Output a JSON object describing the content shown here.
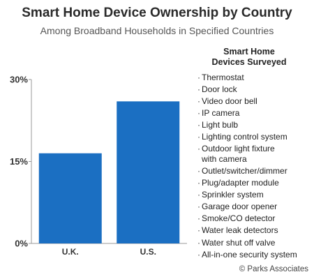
{
  "chart_data": {
    "type": "bar",
    "title": "Smart Home Device Ownership by Country",
    "subtitle": "Among Broadband Households in Specified Countries",
    "categories": [
      "U.K.",
      "U.S."
    ],
    "values": [
      16.5,
      26
    ],
    "unit": "%",
    "ylim": [
      0,
      30
    ],
    "yticks": [
      "0%",
      "15%",
      "30%"
    ],
    "ytick_values": [
      0,
      15,
      30
    ],
    "grid": false,
    "legend": "none",
    "bar_color": "#1b6fc2"
  },
  "devices_panel": {
    "title_line1": "Smart Home",
    "title_line2": "Devices Surveyed",
    "bullet": "·",
    "items": [
      [
        "Thermostat"
      ],
      [
        "Door lock"
      ],
      [
        "Video door bell"
      ],
      [
        "IP camera"
      ],
      [
        "Light bulb"
      ],
      [
        "Lighting control system"
      ],
      [
        "Outdoor light fixture",
        "with camera"
      ],
      [
        "Outlet/switcher/dimmer"
      ],
      [
        "Plug/adapter module"
      ],
      [
        "Sprinkler system"
      ],
      [
        "Garage door opener"
      ],
      [
        "Smoke/CO detector"
      ],
      [
        "Water leak detectors"
      ],
      [
        "Water shut off valve"
      ],
      [
        "All-in-one security system"
      ]
    ]
  },
  "copyright": "© Parks Associates"
}
